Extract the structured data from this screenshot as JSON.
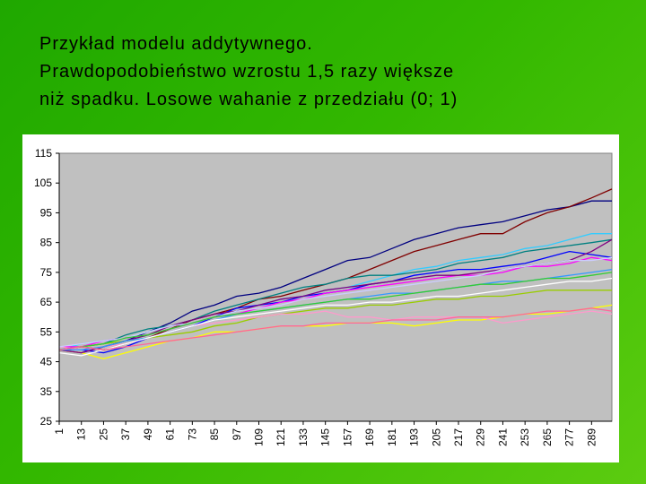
{
  "title_lines": [
    "Przykład modelu addytywnego.",
    "Prawdopodobieństwo wzrostu 1,5 razy większe",
    "niż spadku. Losowe wahanie z przedziału (0; 1)"
  ],
  "chart_data": {
    "type": "line",
    "x": [
      1,
      13,
      25,
      37,
      49,
      61,
      73,
      85,
      97,
      109,
      121,
      133,
      145,
      157,
      169,
      181,
      193,
      205,
      217,
      229,
      241,
      253,
      265,
      277,
      289,
      300
    ],
    "xlim": [
      1,
      300
    ],
    "xticks": [
      1,
      13,
      25,
      37,
      49,
      61,
      73,
      85,
      97,
      109,
      121,
      133,
      145,
      157,
      169,
      181,
      193,
      205,
      217,
      229,
      241,
      253,
      265,
      277,
      289
    ],
    "ylim": [
      25,
      115
    ],
    "yticks": [
      25,
      35,
      45,
      55,
      65,
      75,
      85,
      95,
      105,
      115
    ],
    "plot_background": "#c0c0c0",
    "series": [
      {
        "color": "#000080",
        "values": [
          49,
          48,
          50,
          52,
          55,
          58,
          62,
          64,
          67,
          68,
          70,
          73,
          76,
          79,
          80,
          83,
          86,
          88,
          90,
          91,
          92,
          94,
          96,
          97,
          99,
          99
        ]
      },
      {
        "color": "#800000",
        "values": [
          49,
          50,
          49,
          51,
          53,
          56,
          59,
          61,
          63,
          66,
          67,
          69,
          71,
          73,
          76,
          79,
          82,
          84,
          86,
          88,
          88,
          92,
          95,
          97,
          100,
          103
        ]
      },
      {
        "color": "#33ccff",
        "values": [
          49,
          51,
          52,
          53,
          55,
          57,
          58,
          60,
          62,
          64,
          66,
          67,
          69,
          70,
          72,
          74,
          76,
          77,
          79,
          80,
          81,
          83,
          84,
          86,
          88,
          88
        ]
      },
      {
        "color": "#008080",
        "values": [
          49,
          50,
          51,
          54,
          56,
          57,
          59,
          62,
          64,
          66,
          68,
          70,
          71,
          73,
          74,
          74,
          75,
          76,
          78,
          79,
          80,
          82,
          83,
          84,
          85,
          86
        ]
      },
      {
        "color": "#0000ff",
        "values": [
          49,
          49,
          48,
          50,
          53,
          55,
          57,
          60,
          63,
          64,
          65,
          67,
          68,
          69,
          71,
          72,
          74,
          75,
          76,
          76,
          77,
          78,
          80,
          82,
          81,
          80
        ]
      },
      {
        "color": "#ff00ff",
        "values": [
          50,
          50,
          52,
          53,
          54,
          56,
          58,
          60,
          61,
          63,
          65,
          66,
          68,
          69,
          70,
          71,
          72,
          73,
          74,
          74,
          75,
          77,
          77,
          78,
          80,
          79
        ]
      },
      {
        "color": "#99cc00",
        "values": [
          49,
          50,
          51,
          52,
          53,
          54,
          55,
          57,
          58,
          60,
          61,
          62,
          63,
          63,
          64,
          64,
          65,
          66,
          66,
          67,
          67,
          68,
          69,
          69,
          69,
          69
        ]
      },
      {
        "color": "#ffff00",
        "values": [
          49,
          48,
          46,
          48,
          50,
          52,
          53,
          55,
          55,
          56,
          57,
          57,
          57,
          58,
          58,
          58,
          57,
          58,
          59,
          59,
          60,
          61,
          61,
          62,
          63,
          64
        ]
      },
      {
        "color": "#ff99cc",
        "values": [
          50,
          49,
          50,
          51,
          53,
          55,
          57,
          58,
          59,
          60,
          61,
          61,
          62,
          60,
          60,
          59,
          60,
          60,
          60,
          60,
          58,
          59,
          60,
          61,
          62,
          61
        ]
      },
      {
        "color": "#800080",
        "values": [
          49,
          48,
          50,
          52,
          54,
          57,
          59,
          61,
          62,
          64,
          66,
          67,
          69,
          70,
          71,
          72,
          73,
          74,
          74,
          75,
          76,
          77,
          78,
          79,
          82,
          86
        ]
      },
      {
        "color": "#3399ff",
        "values": [
          49,
          49,
          50,
          52,
          53,
          55,
          57,
          59,
          61,
          62,
          63,
          64,
          65,
          66,
          67,
          68,
          68,
          69,
          70,
          71,
          72,
          72,
          73,
          74,
          75,
          76
        ]
      },
      {
        "color": "#ffffff",
        "values": [
          48,
          47,
          49,
          51,
          53,
          55,
          57,
          59,
          60,
          61,
          62,
          63,
          64,
          64,
          65,
          65,
          66,
          67,
          67,
          68,
          69,
          70,
          71,
          72,
          72,
          73
        ]
      },
      {
        "color": "#ccccff",
        "values": [
          50,
          51,
          52,
          53,
          55,
          57,
          58,
          60,
          62,
          63,
          64,
          66,
          67,
          68,
          69,
          70,
          71,
          72,
          73,
          74,
          76,
          77,
          78,
          79,
          79,
          80
        ]
      },
      {
        "color": "#33cc33",
        "values": [
          49,
          50,
          51,
          53,
          54,
          56,
          58,
          60,
          61,
          62,
          63,
          64,
          65,
          66,
          66,
          67,
          68,
          69,
          70,
          71,
          71,
          72,
          73,
          73,
          74,
          75
        ]
      },
      {
        "color": "#ff6699",
        "values": [
          49,
          50,
          49,
          50,
          51,
          52,
          53,
          54,
          55,
          56,
          57,
          57,
          58,
          58,
          58,
          59,
          59,
          59,
          60,
          60,
          60,
          61,
          62,
          62,
          63,
          62
        ]
      }
    ]
  }
}
